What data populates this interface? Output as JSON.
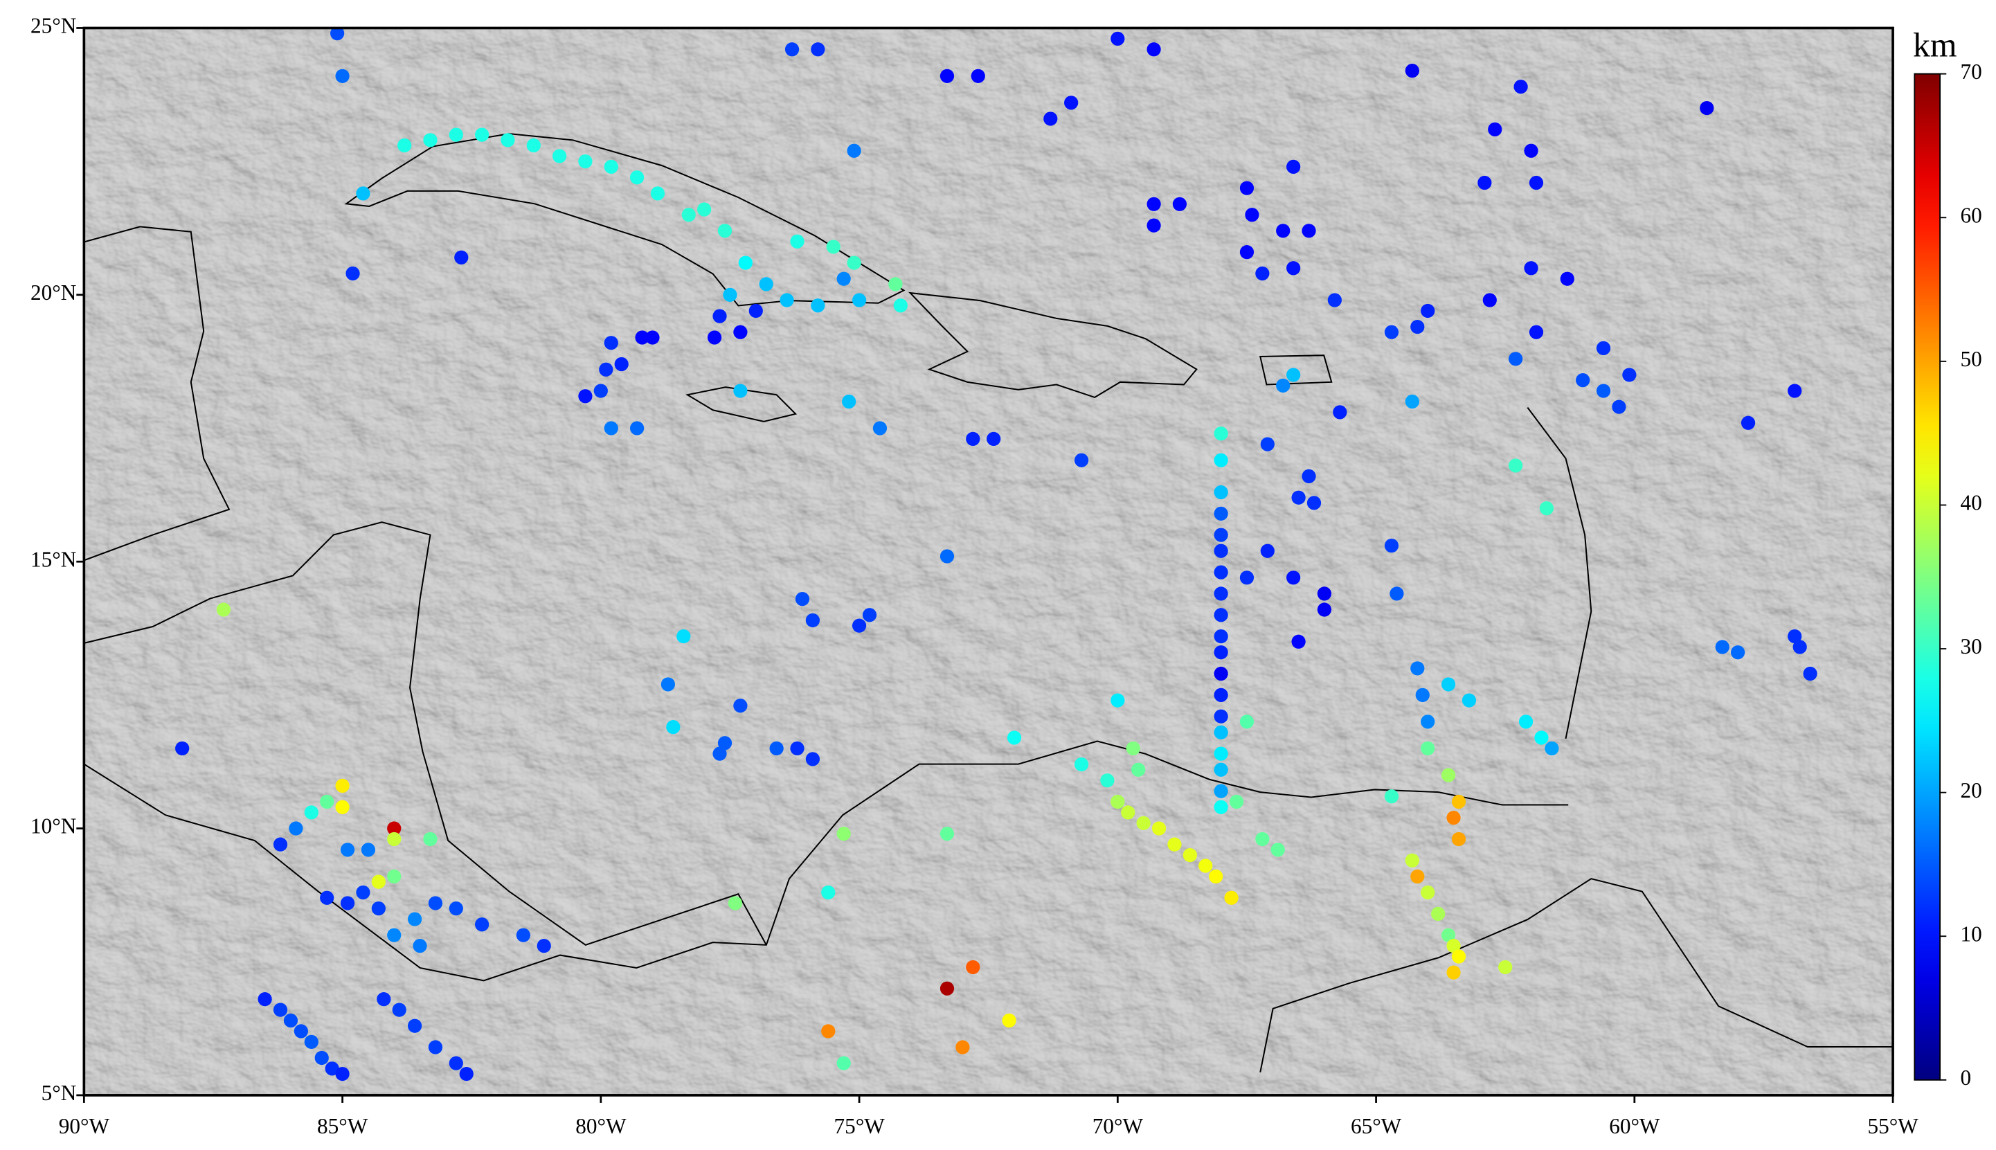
{
  "chart_data": {
    "type": "scatter",
    "colormap": "jet",
    "xlim": [
      -90,
      -55
    ],
    "ylim": [
      5,
      25
    ],
    "xticks": [
      {
        "value": -90,
        "label": "90°W"
      },
      {
        "value": -85,
        "label": "85°W"
      },
      {
        "value": -80,
        "label": "80°W"
      },
      {
        "value": -75,
        "label": "75°W"
      },
      {
        "value": -70,
        "label": "70°W"
      },
      {
        "value": -65,
        "label": "65°W"
      },
      {
        "value": -60,
        "label": "60°W"
      },
      {
        "value": -55,
        "label": "55°W"
      }
    ],
    "yticks": [
      {
        "value": 5,
        "label": "5°N"
      },
      {
        "value": 10,
        "label": "10°N"
      },
      {
        "value": 15,
        "label": "15°N"
      },
      {
        "value": 20,
        "label": "20°N"
      },
      {
        "value": 25,
        "label": "25°N"
      }
    ],
    "colorbar": {
      "label": "km",
      "lim": [
        0,
        70
      ],
      "ticks": [
        0,
        10,
        20,
        30,
        40,
        50,
        60,
        70
      ]
    },
    "x": [
      -83.8,
      -83.3,
      -82.8,
      -82.3,
      -81.8,
      -81.3,
      -80.8,
      -80.3,
      -79.8,
      -79.3,
      -78.9,
      -78.0,
      -77.6,
      -78.3,
      -77.2,
      -76.2,
      -75.5,
      -75.1,
      -74.3,
      -74.2,
      -76.8,
      -77.5,
      -76.4,
      -75.8,
      -75.3,
      -75.0,
      -84.6,
      -84.8,
      -82.7,
      -85.1,
      -85.0,
      -76.3,
      -75.8,
      -75.1,
      -73.3,
      -72.7,
      -71.3,
      -70.9,
      -70.0,
      -69.3,
      -64.3,
      -62.2,
      -62.7,
      -62.0,
      -62.9,
      -61.9,
      -58.6,
      -66.6,
      -67.5,
      -67.4,
      -66.8,
      -66.3,
      -66.6,
      -67.5,
      -67.2,
      -69.3,
      -68.8,
      -69.3,
      -62.0,
      -61.3,
      -62.8,
      -65.8,
      -64.7,
      -64.0,
      -64.2,
      -61.9,
      -62.3,
      -60.6,
      -60.1,
      -60.6,
      -61.0,
      -60.3,
      -56.9,
      -57.8,
      -64.3,
      -66.6,
      -66.8,
      -65.7,
      -67.1,
      -68.0,
      -68.0,
      -68.0,
      -68.0,
      -68.0,
      -68.0,
      -68.0,
      -68.0,
      -68.0,
      -68.0,
      -68.0,
      -68.0,
      -68.0,
      -68.0,
      -68.0,
      -68.0,
      -68.0,
      -68.0,
      -68.0,
      -66.3,
      -66.5,
      -66.2,
      -67.1,
      -66.6,
      -66.0,
      -66.0,
      -66.5,
      -67.5,
      -64.7,
      -64.6,
      -70.7,
      -73.3,
      -72.8,
      -72.4,
      -75.2,
      -74.6,
      -77.3,
      -79.8,
      -79.3,
      -80.0,
      -80.3,
      -79.9,
      -79.6,
      -79.2,
      -79.0,
      -79.8,
      -77.7,
      -77.0,
      -77.3,
      -77.8,
      -62.3,
      -61.7,
      -64.2,
      -64.1,
      -64.0,
      -63.6,
      -63.2,
      -62.1,
      -61.8,
      -61.6,
      -58.3,
      -58.0,
      -56.9,
      -56.8,
      -56.6,
      -76.1,
      -75.9,
      -75.0,
      -74.8,
      -78.4,
      -78.7,
      -78.6,
      -77.7,
      -77.6,
      -77.3,
      -76.6,
      -76.2,
      -75.9,
      -72.0,
      -70.0,
      -70.7,
      -70.2,
      -69.7,
      -69.6,
      -70.0,
      -69.8,
      -69.5,
      -69.2,
      -68.9,
      -68.6,
      -68.3,
      -68.1,
      -67.8,
      -67.2,
      -66.9,
      -67.7,
      -67.5,
      -64.7,
      -64.0,
      -63.6,
      -63.4,
      -63.5,
      -63.4,
      -64.3,
      -64.2,
      -64.0,
      -63.8,
      -63.6,
      -63.5,
      -63.4,
      -63.5,
      -62.5,
      -73.3,
      -75.3,
      -75.6,
      -73.3,
      -72.8,
      -73.0,
      -75.6,
      -75.3,
      -72.1,
      -77.4,
      -87.3,
      -88.1,
      -85.0,
      -85.0,
      -85.3,
      -85.6,
      -85.9,
      -86.2,
      -84.9,
      -84.5,
      -84.0,
      -84.0,
      -83.3,
      -84.3,
      -84.0,
      -83.6,
      -83.5,
      -84.3,
      -84.6,
      -85.3,
      -84.9,
      -84.0,
      -82.8,
      -82.3,
      -81.5,
      -81.1,
      -83.2,
      -86.5,
      -86.2,
      -86.0,
      -85.8,
      -85.6,
      -85.4,
      -85.2,
      -85.0,
      -84.2,
      -83.9,
      -83.6,
      -83.2,
      -82.8,
      -82.6
    ],
    "values": [
      22.8,
      22.9,
      23.0,
      23.0,
      22.9,
      22.8,
      22.6,
      22.5,
      22.4,
      22.2,
      21.9,
      21.6,
      21.2,
      21.5,
      20.6,
      21.0,
      20.9,
      20.6,
      20.2,
      19.8,
      20.2,
      20.0,
      19.9,
      19.8,
      20.3,
      19.9,
      21.9,
      20.4,
      20.7,
      24.9,
      24.1,
      24.6,
      24.6,
      22.7,
      24.1,
      24.1,
      23.3,
      23.6,
      24.8,
      24.6,
      24.2,
      23.9,
      23.1,
      22.7,
      22.1,
      22.1,
      23.5,
      22.4,
      22.0,
      21.5,
      21.2,
      21.2,
      20.5,
      20.8,
      20.4,
      21.7,
      21.7,
      21.3,
      20.5,
      20.3,
      19.9,
      19.9,
      19.3,
      19.7,
      19.4,
      19.3,
      18.8,
      19.0,
      18.5,
      18.2,
      18.4,
      17.9,
      18.2,
      17.6,
      18.0,
      18.5,
      18.3,
      17.8,
      17.2,
      17.4,
      16.9,
      16.3,
      15.9,
      15.5,
      15.2,
      14.8,
      14.4,
      14.0,
      13.6,
      13.3,
      12.9,
      12.5,
      12.1,
      11.8,
      11.4,
      11.1,
      10.7,
      10.4,
      16.6,
      16.2,
      16.1,
      15.2,
      14.7,
      14.4,
      14.1,
      13.5,
      14.7,
      15.3,
      14.4,
      16.9,
      15.1,
      17.3,
      17.3,
      18.0,
      17.5,
      18.2,
      17.5,
      17.5,
      18.2,
      18.1,
      18.6,
      18.7,
      19.2,
      19.2,
      19.1,
      19.6,
      19.7,
      19.3,
      19.2,
      16.8,
      16.0,
      13.0,
      12.5,
      12.0,
      12.7,
      12.4,
      12.0,
      11.7,
      11.5,
      13.4,
      13.3,
      13.6,
      13.4,
      12.9,
      14.3,
      13.9,
      13.8,
      14.0,
      13.6,
      12.7,
      11.9,
      11.4,
      11.6,
      12.3,
      11.5,
      11.5,
      11.3,
      11.7,
      12.4,
      11.2,
      10.9,
      11.5,
      11.1,
      10.5,
      10.3,
      10.1,
      10.0,
      9.7,
      9.5,
      9.3,
      9.1,
      8.7,
      9.8,
      9.6,
      10.5,
      12.0,
      10.6,
      11.5,
      11.0,
      10.5,
      10.2,
      9.8,
      9.4,
      9.1,
      8.8,
      8.4,
      8.0,
      7.8,
      7.6,
      7.3,
      7.4,
      9.9,
      9.9,
      8.8,
      7.0,
      7.4,
      5.9,
      6.2,
      5.6,
      6.4,
      8.6,
      14.1,
      11.5,
      10.8,
      10.4,
      10.5,
      10.3,
      10.0,
      9.7,
      9.6,
      9.6,
      10.0,
      9.8,
      9.8,
      9.0,
      9.1,
      8.3,
      7.8,
      8.5,
      8.8,
      8.7,
      8.6,
      8.0,
      8.5,
      8.2,
      8.0,
      7.8,
      8.6,
      6.8,
      6.6,
      6.4,
      6.2,
      6.0,
      5.7,
      5.5,
      5.4,
      6.8,
      6.6,
      6.3,
      5.9,
      5.6,
      5.4
    ],
    "depth": [
      28,
      28,
      28,
      28,
      28,
      28,
      28,
      28,
      28,
      28,
      28,
      29,
      29,
      29,
      26,
      28,
      30,
      30,
      33,
      28,
      22,
      22,
      22,
      22,
      18,
      22,
      22,
      12,
      11,
      14,
      16,
      13,
      12,
      17,
      9,
      9,
      10,
      10,
      10,
      9,
      8,
      10,
      9,
      9,
      10,
      10,
      8,
      10,
      9,
      9,
      9,
      9,
      10,
      9,
      11,
      9,
      9,
      9,
      10,
      9,
      9,
      12,
      13,
      11,
      12,
      10,
      15,
      12,
      12,
      15,
      14,
      13,
      10,
      11,
      20,
      22,
      18,
      11,
      13,
      29,
      25,
      22,
      15,
      13,
      12,
      12,
      12,
      12,
      12,
      11,
      8,
      11,
      12,
      22,
      25,
      22,
      20,
      27,
      12,
      12,
      12,
      11,
      10,
      8,
      8,
      9,
      12,
      13,
      15,
      13,
      16,
      11,
      11,
      22,
      17,
      22,
      17,
      16,
      13,
      10,
      12,
      11,
      9,
      9,
      12,
      11,
      11,
      9,
      9,
      30,
      30,
      17,
      17,
      18,
      23,
      23,
      25,
      26,
      20,
      16,
      16,
      12,
      12,
      12,
      14,
      13,
      12,
      13,
      24,
      17,
      24,
      15,
      15,
      14,
      15,
      12,
      12,
      27,
      25,
      28,
      29,
      35,
      33,
      38,
      40,
      40,
      42,
      42,
      42,
      43,
      44,
      45,
      33,
      33,
      33,
      32,
      30,
      33,
      37,
      48,
      52,
      50,
      40,
      50,
      40,
      38,
      34,
      41,
      44,
      47,
      40,
      33,
      36,
      28,
      67,
      55,
      52,
      52,
      32,
      44,
      35,
      38,
      11,
      45,
      44,
      33,
      28,
      17,
      12,
      17,
      17,
      65,
      40,
      33,
      42,
      34,
      18,
      17,
      13,
      13,
      12,
      12,
      18,
      14,
      13,
      14,
      12,
      14,
      11,
      13,
      14,
      14,
      15,
      14,
      12,
      11,
      12,
      13,
      13,
      13,
      12,
      11
    ]
  }
}
